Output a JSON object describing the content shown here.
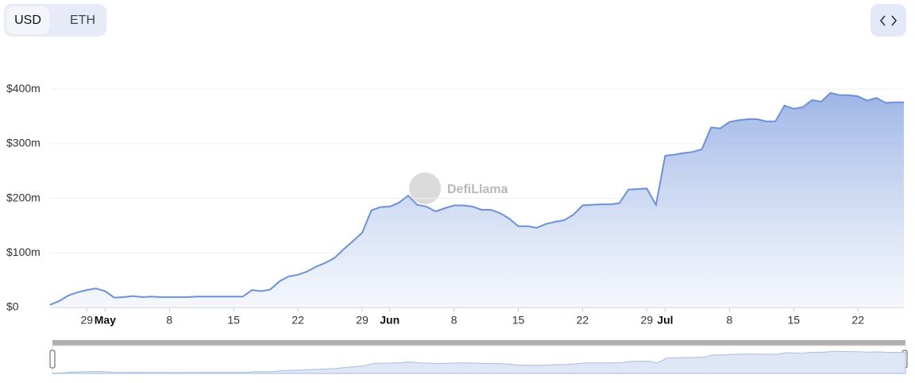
{
  "toggle": {
    "options": [
      "USD",
      "ETH"
    ],
    "selected": "USD"
  },
  "chart_data": {
    "type": "area",
    "watermark": "DefiLlama",
    "color": "#6d91d9",
    "x": [
      "04-25",
      "04-26",
      "04-27",
      "04-28",
      "04-29",
      "04-30",
      "05-01",
      "05-02",
      "05-03",
      "05-04",
      "05-05",
      "05-06",
      "05-07",
      "05-08",
      "05-09",
      "05-10",
      "05-11",
      "05-12",
      "05-13",
      "05-14",
      "05-15",
      "05-16",
      "05-17",
      "05-18",
      "05-19",
      "05-20",
      "05-21",
      "05-22",
      "05-23",
      "05-24",
      "05-25",
      "05-26",
      "05-27",
      "05-28",
      "05-29",
      "05-30",
      "05-31",
      "06-01",
      "06-02",
      "06-03",
      "06-04",
      "06-05",
      "06-06",
      "06-07",
      "06-08",
      "06-09",
      "06-10",
      "06-11",
      "06-12",
      "06-13",
      "06-14",
      "06-15",
      "06-16",
      "06-17",
      "06-18",
      "06-19",
      "06-20",
      "06-21",
      "06-22",
      "06-23",
      "06-24",
      "06-25",
      "06-26",
      "06-27",
      "06-28",
      "06-29",
      "06-30",
      "07-01",
      "07-02",
      "07-03",
      "07-04",
      "07-05",
      "07-06",
      "07-07",
      "07-08",
      "07-09",
      "07-10",
      "07-11",
      "07-12",
      "07-13",
      "07-14",
      "07-15",
      "07-16",
      "07-17",
      "07-18",
      "07-19",
      "07-20",
      "07-21",
      "07-22",
      "07-23",
      "07-24",
      "07-25",
      "07-26",
      "07-27"
    ],
    "values": [
      5,
      12,
      22,
      28,
      32,
      35,
      30,
      18,
      19,
      21,
      19,
      20,
      19,
      19,
      19,
      19,
      20,
      20,
      20,
      20,
      20,
      20,
      32,
      30,
      33,
      48,
      57,
      60,
      66,
      75,
      82,
      91,
      107,
      122,
      137,
      178,
      184,
      185,
      192,
      205,
      188,
      185,
      176,
      182,
      187,
      187,
      185,
      179,
      179,
      173,
      163,
      149,
      149,
      146,
      153,
      157,
      160,
      170,
      187,
      188,
      189,
      189,
      191,
      216,
      217,
      218,
      188,
      278,
      280,
      283,
      285,
      290,
      330,
      328,
      340,
      343,
      345,
      345,
      341,
      341,
      370,
      364,
      367,
      380,
      377,
      393,
      389,
      389,
      387,
      379,
      384,
      375,
      376,
      376
    ],
    "xlim": [
      "04-25",
      "07-27"
    ],
    "xticks": [
      {
        "value": "04-29",
        "label": "29"
      },
      {
        "value": "05-01",
        "label": "May"
      },
      {
        "value": "05-08",
        "label": "8"
      },
      {
        "value": "05-15",
        "label": "15"
      },
      {
        "value": "05-22",
        "label": "22"
      },
      {
        "value": "05-29",
        "label": "29"
      },
      {
        "value": "06-01",
        "label": "Jun"
      },
      {
        "value": "06-08",
        "label": "8"
      },
      {
        "value": "06-15",
        "label": "15"
      },
      {
        "value": "06-22",
        "label": "22"
      },
      {
        "value": "06-29",
        "label": "29"
      },
      {
        "value": "07-01",
        "label": "Jul"
      },
      {
        "value": "07-08",
        "label": "8"
      },
      {
        "value": "07-15",
        "label": "15"
      },
      {
        "value": "07-22",
        "label": "22"
      }
    ],
    "ylim": [
      0,
      425
    ],
    "yticks": [
      {
        "value": 0,
        "label": "$0"
      },
      {
        "value": 100,
        "label": "$100m"
      },
      {
        "value": 200,
        "label": "$200m"
      },
      {
        "value": 300,
        "label": "$300m"
      },
      {
        "value": 400,
        "label": "$400m"
      }
    ],
    "grid": true
  }
}
